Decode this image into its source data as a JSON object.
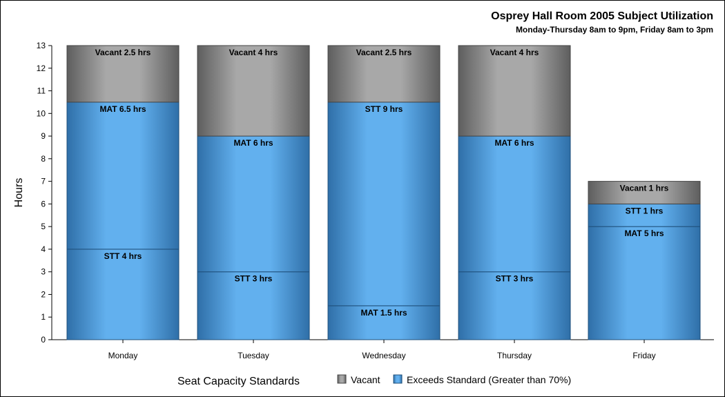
{
  "chart_data": {
    "type": "bar",
    "title": "Osprey Hall Room 2005 Subject Utilization",
    "subtitle": "Monday-Thursday 8am to 9pm, Friday 8am to 3pm",
    "ylabel": "Hours",
    "xlabel": "",
    "ylim": [
      0,
      13
    ],
    "yticks": [
      "0",
      "1",
      "2",
      "3",
      "4",
      "5",
      "6",
      "7",
      "8",
      "9",
      "10",
      "11",
      "12",
      "13"
    ],
    "categories": [
      "Monday",
      "Tuesday",
      "Wednesday",
      "Thursday",
      "Friday"
    ],
    "stacks": [
      [
        {
          "label": "STT 4 hrs",
          "value": 4,
          "type": "Exceeds Standard (Greater than 70%)"
        },
        {
          "label": "MAT 6.5 hrs",
          "value": 6.5,
          "type": "Exceeds Standard (Greater than 70%)"
        },
        {
          "label": "Vacant 2.5 hrs",
          "value": 2.5,
          "type": "Vacant"
        }
      ],
      [
        {
          "label": "STT 3 hrs",
          "value": 3,
          "type": "Exceeds Standard (Greater than 70%)"
        },
        {
          "label": "MAT 6 hrs",
          "value": 6,
          "type": "Exceeds Standard (Greater than 70%)"
        },
        {
          "label": "Vacant 4 hrs",
          "value": 4,
          "type": "Vacant"
        }
      ],
      [
        {
          "label": "MAT 1.5 hrs",
          "value": 1.5,
          "type": "Exceeds Standard (Greater than 70%)"
        },
        {
          "label": "STT 9 hrs",
          "value": 9,
          "type": "Exceeds Standard (Greater than 70%)"
        },
        {
          "label": "Vacant 2.5 hrs",
          "value": 2.5,
          "type": "Vacant"
        }
      ],
      [
        {
          "label": "STT 3 hrs",
          "value": 3,
          "type": "Exceeds Standard (Greater than 70%)"
        },
        {
          "label": "MAT 6 hrs",
          "value": 6,
          "type": "Exceeds Standard (Greater than 70%)"
        },
        {
          "label": "Vacant 4 hrs",
          "value": 4,
          "type": "Vacant"
        }
      ],
      [
        {
          "label": "MAT 5 hrs",
          "value": 5,
          "type": "Exceeds Standard (Greater than 70%)"
        },
        {
          "label": "STT 1 hrs",
          "value": 1,
          "type": "Exceeds Standard (Greater than 70%)"
        },
        {
          "label": "Vacant 1 hrs",
          "value": 1,
          "type": "Vacant"
        }
      ]
    ],
    "legend": {
      "title": "Seat Capacity Standards",
      "position": "bottom",
      "items": [
        {
          "name": "Vacant",
          "color": "#8c8c8c"
        },
        {
          "name": "Exceeds Standard (Greater than 70%)",
          "color": "#4a9ee0"
        }
      ]
    },
    "colors": {
      "vacant_light": "#a8a8a8",
      "vacant_dark": "#5e5e5e",
      "exceeds_light": "#62b0ee",
      "exceeds_dark": "#2f6fa8",
      "segment_border": "#1f4f7a"
    },
    "grid": false
  }
}
